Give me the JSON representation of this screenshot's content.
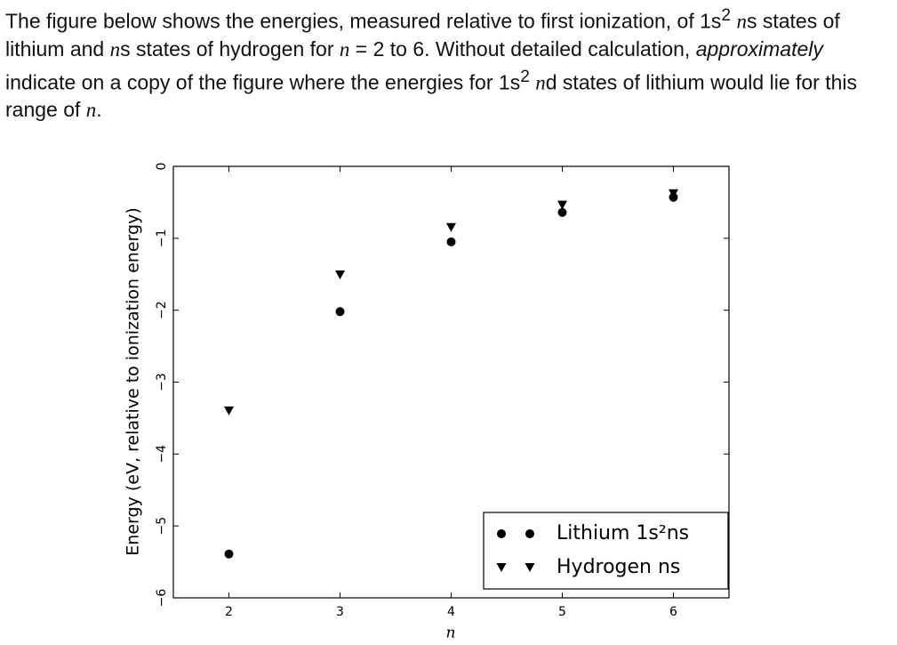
{
  "question": {
    "runs": [
      "The figure below shows the energies, measured relative to first ionization, of 1s",
      "2",
      " ",
      "n",
      "s states of lithium and ",
      "n",
      "s states of hydrogen for ",
      "n",
      " = 2 to 6. Without detailed calculation, ",
      "approximately",
      " indicate on a copy of the figure where the energies for 1s",
      "2",
      " ",
      "n",
      "d states of lithium would lie for this range of ",
      "n",
      "."
    ]
  },
  "chart_data": {
    "type": "scatter",
    "x_label": "n",
    "y_label": "Energy (eV, relative to ionization energy)",
    "xlim": [
      1.5,
      6.5
    ],
    "ylim": [
      -6,
      0
    ],
    "xticks": [
      2,
      3,
      4,
      5,
      6
    ],
    "yticks": [
      {
        "value": -6,
        "label": "−6"
      },
      {
        "value": -5,
        "label": "−5"
      },
      {
        "value": -4,
        "label": "−4"
      },
      {
        "value": -3,
        "label": "−3"
      },
      {
        "value": -2,
        "label": "−2"
      },
      {
        "value": -1,
        "label": "−1"
      },
      0
    ],
    "legend": "lower right",
    "series": [
      {
        "name": "Lithium 1s²ns",
        "color": "#000000",
        "marker": "circle",
        "x": [
          2,
          3,
          4,
          5,
          6
        ],
        "values": [
          -5.39,
          -2.02,
          -1.05,
          -0.64,
          -0.43
        ]
      },
      {
        "name": "Hydrogen ns",
        "color": "#000000",
        "marker": "triangle-down",
        "x": [
          2,
          3,
          4,
          5,
          6
        ],
        "values": [
          -3.4,
          -1.51,
          -0.85,
          -0.54,
          -0.38
        ]
      }
    ]
  }
}
